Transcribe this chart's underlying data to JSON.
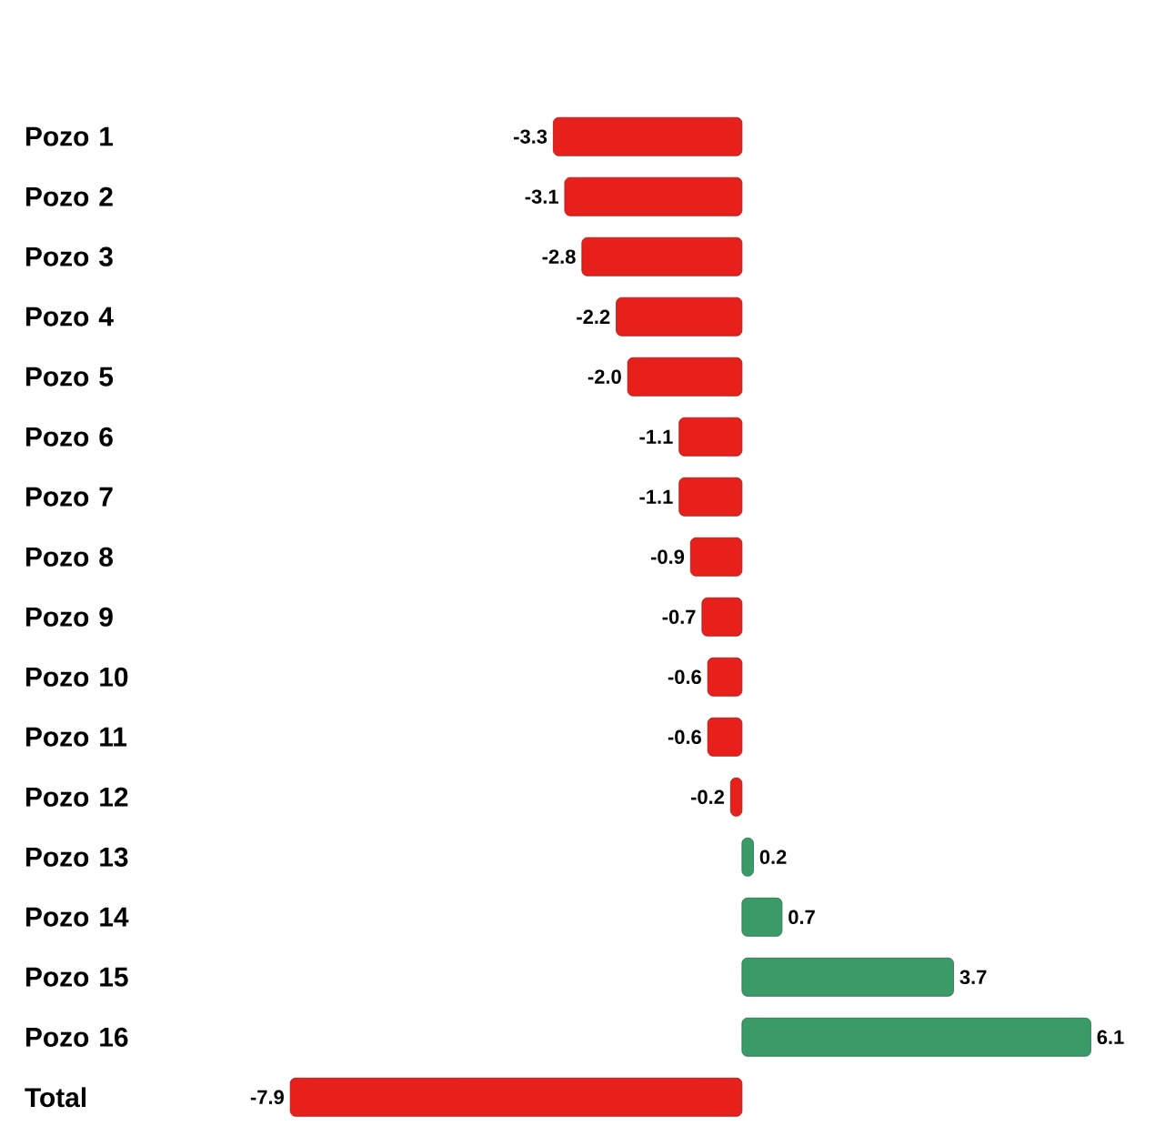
{
  "chart_data": {
    "type": "bar",
    "orientation": "horizontal",
    "categories": [
      "Pozo 1",
      "Pozo 2",
      "Pozo 3",
      "Pozo 4",
      "Pozo 5",
      "Pozo 6",
      "Pozo 7",
      "Pozo 8",
      "Pozo 9",
      "Pozo 10",
      "Pozo 11",
      "Pozo 12",
      "Pozo 13",
      "Pozo 14",
      "Pozo 15",
      "Pozo 16",
      "Total"
    ],
    "values": [
      -3.3,
      -3.1,
      -2.8,
      -2.2,
      -2.0,
      -1.1,
      -1.1,
      -0.9,
      -0.7,
      -0.6,
      -0.6,
      -0.2,
      0.2,
      0.7,
      3.7,
      6.1,
      -7.9
    ],
    "value_labels": [
      "-3.3",
      "-3.1",
      "-2.8",
      "-2.2",
      "-2.0",
      "-1.1",
      "-1.1",
      "-0.9",
      "-0.7",
      "-0.6",
      "-0.6",
      "-0.2",
      "0.2",
      "0.7",
      "3.7",
      "6.1",
      "-7.9"
    ],
    "colors": [
      "#e8201c",
      "#e8201c",
      "#e8201c",
      "#e8201c",
      "#e8201c",
      "#e8201c",
      "#e8201c",
      "#e8201c",
      "#e8201c",
      "#e8201c",
      "#e8201c",
      "#e8201c",
      "#3a9a68",
      "#3a9a68",
      "#3a9a68",
      "#3a9a68",
      "#e8201c"
    ]
  }
}
